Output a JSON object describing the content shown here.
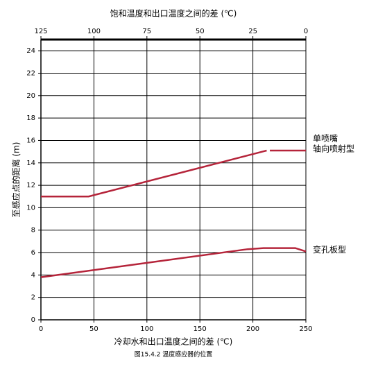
{
  "chart_data": {
    "type": "line",
    "title": "饱和温度和出口温度之间的差 (℃)",
    "xlabel": "冷却水和出口温度之间的差 (℃)",
    "ylabel": "至感应点的距离 (m)",
    "caption": "图15.4.2  温度感应器的位置",
    "xlim": [
      0,
      250
    ],
    "xticks": [
      0,
      50,
      100,
      150,
      200,
      250
    ],
    "x2lim": [
      125,
      0
    ],
    "x2ticks": [
      125,
      100,
      75,
      50,
      25,
      0
    ],
    "ylim": [
      0,
      25
    ],
    "yticks": [
      0,
      2,
      4,
      6,
      8,
      10,
      12,
      14,
      16,
      18,
      20,
      22,
      24
    ],
    "grid": true,
    "series": [
      {
        "name": [
          "单喷嘴",
          "轴向喷射型"
        ],
        "color": "#b5243a",
        "x": [
          0,
          45,
          213,
          214,
          216,
          250
        ],
        "values": [
          11,
          11,
          15.1,
          null,
          15.1,
          15.1
        ]
      },
      {
        "name": [
          "变孔板型"
        ],
        "color": "#b5243a",
        "x": [
          0,
          195,
          210,
          240,
          250
        ],
        "values": [
          3.8,
          6.3,
          6.4,
          6.4,
          6.1
        ]
      }
    ]
  }
}
